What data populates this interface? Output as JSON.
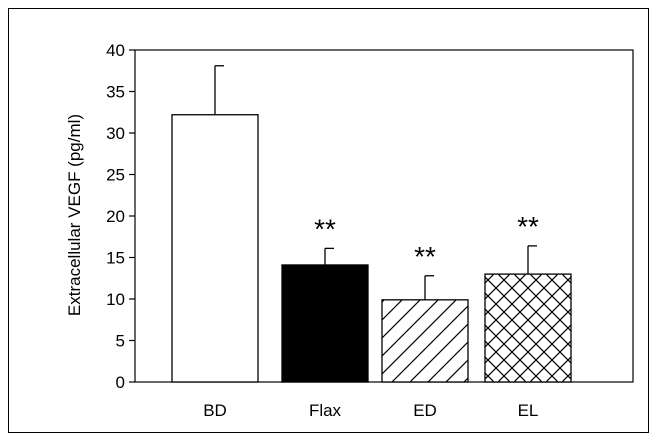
{
  "chart_data": {
    "type": "bar",
    "title": "",
    "xlabel": "",
    "ylabel": "Extracellular VEGF (pg/ml)",
    "ylim": [
      0,
      40
    ],
    "yticks": [
      0,
      5,
      10,
      15,
      20,
      25,
      30,
      35,
      40
    ],
    "categories": [
      "BD",
      "Flax",
      "ED",
      "EL"
    ],
    "values": [
      32.2,
      14.1,
      9.9,
      13.0
    ],
    "errors": [
      5.9,
      2.0,
      2.9,
      3.4
    ],
    "fills": [
      "white",
      "black",
      "diagonal-hatch",
      "cross-hatch"
    ],
    "annotations": [
      "",
      "**",
      "**",
      "**"
    ],
    "grid": false
  }
}
